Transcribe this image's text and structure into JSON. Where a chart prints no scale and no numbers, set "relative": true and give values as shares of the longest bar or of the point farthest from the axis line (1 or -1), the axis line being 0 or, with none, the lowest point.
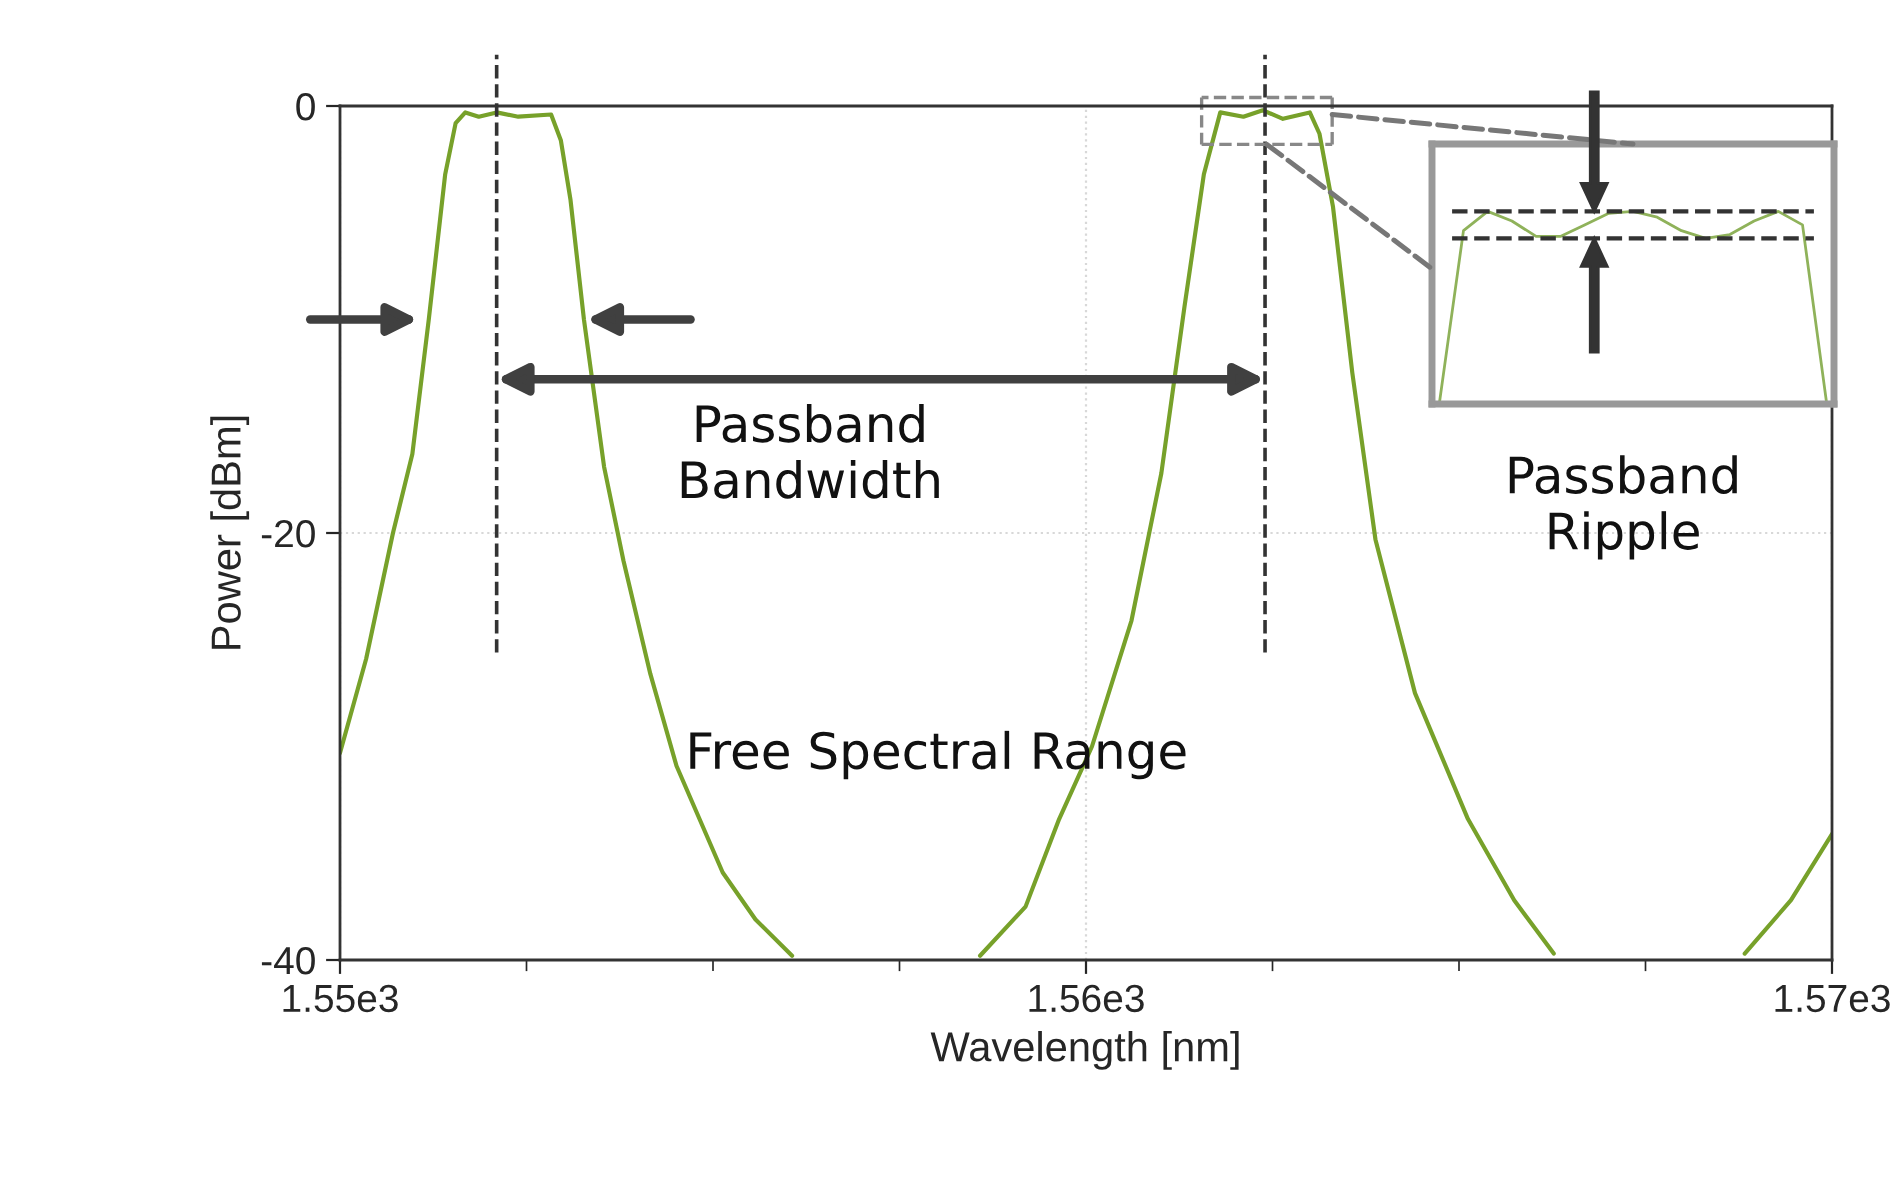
{
  "chart_data": [
    {
      "type": "line",
      "xlabel": "Wavelength [nm]",
      "ylabel": "Power [dBm]",
      "xlim": [
        1550,
        1570
      ],
      "ylim": [
        -40,
        0
      ],
      "xticks": [
        {
          "value": 1550,
          "label": "1.55e3"
        },
        {
          "value": 1552.5,
          "label": null
        },
        {
          "value": 1555,
          "label": null
        },
        {
          "value": 1557.5,
          "label": null
        },
        {
          "value": 1560,
          "label": "1.56e3"
        },
        {
          "value": 1562.5,
          "label": null
        },
        {
          "value": 1565,
          "label": null
        },
        {
          "value": 1567.5,
          "label": null
        },
        {
          "value": 1570,
          "label": "1.57e3"
        }
      ],
      "yticks": [
        -40,
        -20,
        0
      ],
      "grid": true,
      "marker": "none",
      "line_style": "solid",
      "series": [
        {
          "color": "#77a12a",
          "x": [
            1550.0,
            1550.35,
            1550.71,
            1550.97,
            1551.19,
            1551.41,
            1551.55,
            1551.68,
            1551.86,
            1552.1,
            1552.39,
            1552.83,
            1552.96,
            1553.09,
            1553.27,
            1553.54,
            1553.8,
            1554.16,
            1554.51,
            1555.13,
            1555.57,
            1556.06,
            1557.3,
            1558.58,
            1559.19,
            1559.64,
            1560.08,
            1560.61,
            1561.01,
            1561.32,
            1561.58,
            1561.8,
            1562.11,
            1562.37,
            1562.64,
            1563.0,
            1563.13,
            1563.31,
            1563.57,
            1563.88,
            1564.41,
            1565.12,
            1565.74,
            1566.27,
            1567.5,
            1568.83,
            1569.45,
            1570.0
          ],
          "values": [
            -30.3,
            -25.9,
            -20.0,
            -16.3,
            -10.0,
            -3.2,
            -0.8,
            -0.3,
            -0.5,
            -0.3,
            -0.5,
            -0.4,
            -1.6,
            -4.4,
            -10.0,
            -16.9,
            -21.3,
            -26.6,
            -30.9,
            -35.9,
            -38.1,
            -39.8,
            null,
            -39.8,
            -37.5,
            -33.4,
            -30.0,
            -24.1,
            -17.2,
            -9.4,
            -3.2,
            -0.3,
            -0.5,
            -0.2,
            -0.6,
            -0.3,
            -1.3,
            -4.7,
            -12.5,
            -20.3,
            -27.5,
            -33.4,
            -37.2,
            -39.7,
            null,
            -39.7,
            -37.2,
            -34.1
          ]
        }
      ],
      "ref_lines": [
        {
          "axis": "x",
          "value": 1552.1,
          "color": "#333333",
          "line_style": "dashed"
        },
        {
          "axis": "x",
          "value": 1562.4,
          "color": "#333333",
          "line_style": "dashed"
        }
      ],
      "annotations": [
        "Passband\nBandwidth",
        "Free Spectral Range",
        "Passband\nRipple"
      ]
    },
    {
      "type": "line",
      "relative": true,
      "marker": "none",
      "line_style": "solid",
      "categories": [
        null,
        null,
        null,
        null,
        null,
        null,
        null,
        null,
        null,
        null,
        null,
        null,
        null,
        null,
        null,
        null,
        null
      ],
      "series": [
        {
          "color": "#8fb25a",
          "values": [
            0,
            0.9,
            1.0,
            0.95,
            0.87,
            0.87,
            0.93,
            0.99,
            1.0,
            0.97,
            0.9,
            0.86,
            0.88,
            0.95,
            1.0,
            0.93,
            0
          ]
        }
      ],
      "ref_lines": [
        {
          "axis": "y",
          "value": 1.0,
          "color": "#333333",
          "line_style": "dashed"
        },
        {
          "axis": "y",
          "value": 0.86,
          "color": "#333333",
          "line_style": "dashed"
        }
      ]
    }
  ]
}
